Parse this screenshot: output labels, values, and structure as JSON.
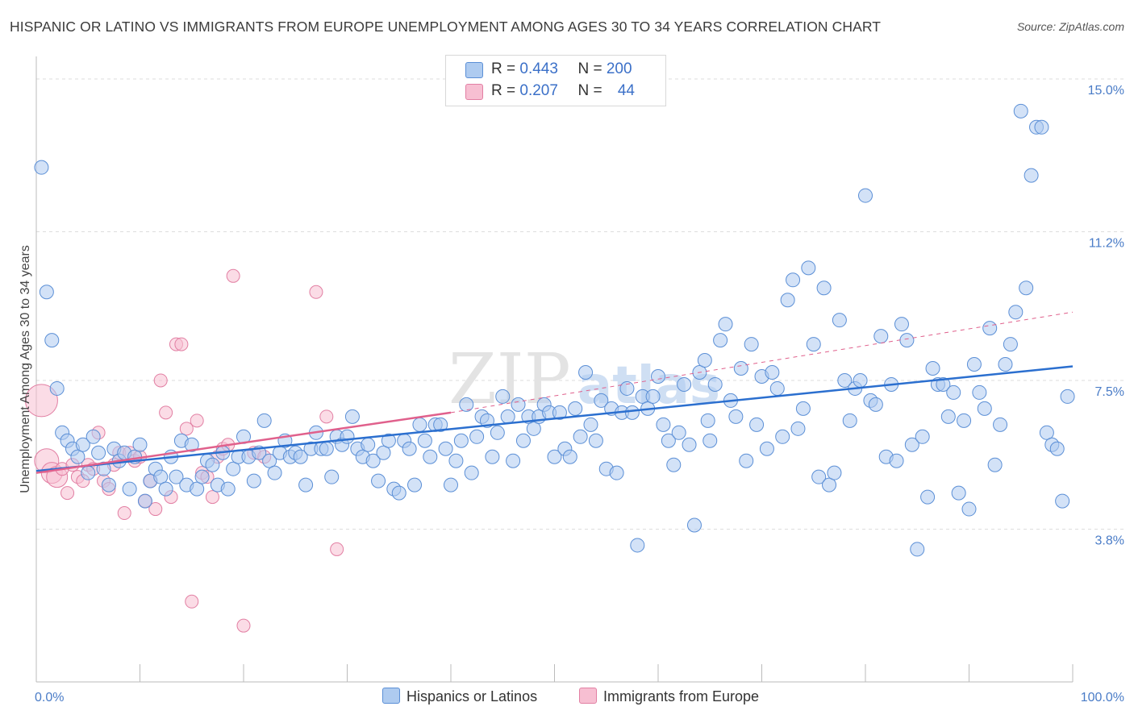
{
  "header": {
    "title": "HISPANIC OR LATINO VS IMMIGRANTS FROM EUROPE UNEMPLOYMENT AMONG AGES 30 TO 34 YEARS CORRELATION CHART",
    "source": "Source: ZipAtlas.com"
  },
  "watermark": {
    "left": "ZIP",
    "right": "atlas"
  },
  "legend": {
    "rows": [
      {
        "r_label": "R = ",
        "r_value": "0.443",
        "n_label": "N = ",
        "n_value": "200"
      },
      {
        "r_label": "R = ",
        "r_value": "0.207",
        "n_label": "N = ",
        "n_value": "44"
      }
    ]
  },
  "colors": {
    "blue_fill": "#aecbf0",
    "blue_stroke": "#5b8fd6",
    "blue_line": "#2b6fcf",
    "pink_fill": "#f7bfd2",
    "pink_stroke": "#e27fa3",
    "pink_line": "#e0608c",
    "grid": "#dddddd",
    "axis_label": "#4a7cc7"
  },
  "chart_data": {
    "type": "scatter",
    "xlabel": "",
    "ylabel": "Unemployment Among Ages 30 to 34 years",
    "xlim": [
      0,
      100
    ],
    "ylim": [
      0,
      15.4
    ],
    "x_tick_labels": [
      "0.0%",
      "100.0%"
    ],
    "y_ticks": [
      3.8,
      7.5,
      11.2,
      15.0
    ],
    "y_tick_labels": [
      "3.8%",
      "7.5%",
      "11.2%",
      "15.0%"
    ],
    "grid": true,
    "legend_position": "bottom",
    "series": [
      {
        "name": "Hispanics or Latinos",
        "r": 0.443,
        "n": 200,
        "trend": {
          "x": [
            0,
            100
          ],
          "y": [
            5.25,
            7.85
          ]
        },
        "points": [
          [
            0.5,
            12.8
          ],
          [
            1,
            9.7
          ],
          [
            1.5,
            8.5
          ],
          [
            2,
            7.3
          ],
          [
            2.5,
            6.2
          ],
          [
            3,
            6.0
          ],
          [
            3.5,
            5.8
          ],
          [
            4,
            5.6
          ],
          [
            4.5,
            5.9
          ],
          [
            5,
            5.2
          ],
          [
            5.5,
            6.1
          ],
          [
            6,
            5.7
          ],
          [
            6.5,
            5.3
          ],
          [
            7,
            4.9
          ],
          [
            7.5,
            5.8
          ],
          [
            8,
            5.5
          ],
          [
            8.5,
            5.7
          ],
          [
            9,
            4.8
          ],
          [
            9.5,
            5.6
          ],
          [
            10,
            5.9
          ],
          [
            10.5,
            4.5
          ],
          [
            11,
            5.0
          ],
          [
            11.5,
            5.3
          ],
          [
            12,
            5.1
          ],
          [
            12.5,
            4.8
          ],
          [
            13,
            5.6
          ],
          [
            13.5,
            5.1
          ],
          [
            14,
            6.0
          ],
          [
            14.5,
            4.9
          ],
          [
            15,
            5.9
          ],
          [
            15.5,
            4.8
          ],
          [
            16,
            5.1
          ],
          [
            16.5,
            5.5
          ],
          [
            17,
            5.4
          ],
          [
            17.5,
            4.9
          ],
          [
            18,
            5.7
          ],
          [
            18.5,
            4.8
          ],
          [
            19,
            5.3
          ],
          [
            19.5,
            5.6
          ],
          [
            20,
            6.1
          ],
          [
            20.5,
            5.6
          ],
          [
            21,
            5.0
          ],
          [
            21.5,
            5.7
          ],
          [
            22,
            6.5
          ],
          [
            22.5,
            5.5
          ],
          [
            23,
            5.2
          ],
          [
            23.5,
            5.7
          ],
          [
            24,
            6.0
          ],
          [
            24.5,
            5.6
          ],
          [
            25,
            5.7
          ],
          [
            25.5,
            5.6
          ],
          [
            26,
            4.9
          ],
          [
            26.5,
            5.8
          ],
          [
            27,
            6.2
          ],
          [
            27.5,
            5.8
          ],
          [
            28,
            5.8
          ],
          [
            28.5,
            5.1
          ],
          [
            29,
            6.1
          ],
          [
            29.5,
            5.9
          ],
          [
            30,
            6.1
          ],
          [
            30.5,
            6.6
          ],
          [
            31,
            5.8
          ],
          [
            31.5,
            5.6
          ],
          [
            32,
            5.9
          ],
          [
            32.5,
            5.5
          ],
          [
            33,
            5.0
          ],
          [
            33.5,
            5.7
          ],
          [
            34,
            6.0
          ],
          [
            34.5,
            4.8
          ],
          [
            35,
            4.7
          ],
          [
            35.5,
            6.0
          ],
          [
            36,
            5.8
          ],
          [
            36.5,
            4.9
          ],
          [
            37,
            6.4
          ],
          [
            37.5,
            6.0
          ],
          [
            38,
            5.6
          ],
          [
            38.5,
            6.4
          ],
          [
            39,
            6.4
          ],
          [
            39.5,
            5.8
          ],
          [
            40,
            4.9
          ],
          [
            40.5,
            5.5
          ],
          [
            41,
            6.0
          ],
          [
            41.5,
            6.9
          ],
          [
            42,
            5.2
          ],
          [
            42.5,
            6.1
          ],
          [
            43,
            6.6
          ],
          [
            43.5,
            6.5
          ],
          [
            44,
            5.6
          ],
          [
            44.5,
            6.2
          ],
          [
            45,
            7.1
          ],
          [
            45.5,
            6.6
          ],
          [
            46,
            5.5
          ],
          [
            46.5,
            6.9
          ],
          [
            47,
            6.0
          ],
          [
            47.5,
            6.6
          ],
          [
            48,
            6.3
          ],
          [
            48.5,
            6.6
          ],
          [
            49,
            6.9
          ],
          [
            49.5,
            6.7
          ],
          [
            50,
            5.6
          ],
          [
            50.5,
            6.7
          ],
          [
            51,
            5.8
          ],
          [
            51.5,
            5.6
          ],
          [
            52,
            6.8
          ],
          [
            52.5,
            6.1
          ],
          [
            53,
            7.7
          ],
          [
            53.5,
            6.4
          ],
          [
            54,
            6.0
          ],
          [
            54.5,
            7.0
          ],
          [
            55,
            5.3
          ],
          [
            55.5,
            6.8
          ],
          [
            56,
            5.2
          ],
          [
            56.5,
            6.7
          ],
          [
            57,
            7.3
          ],
          [
            57.5,
            6.7
          ],
          [
            58,
            3.4
          ],
          [
            58.5,
            7.1
          ],
          [
            59,
            6.8
          ],
          [
            59.5,
            7.1
          ],
          [
            60,
            7.6
          ],
          [
            60.5,
            6.4
          ],
          [
            61,
            6.0
          ],
          [
            61.5,
            5.4
          ],
          [
            62,
            6.2
          ],
          [
            62.5,
            7.4
          ],
          [
            63,
            5.9
          ],
          [
            63.5,
            3.9
          ],
          [
            64,
            7.7
          ],
          [
            64.5,
            8.0
          ],
          [
            65,
            6.0
          ],
          [
            65.5,
            7.4
          ],
          [
            66,
            8.5
          ],
          [
            66.5,
            8.9
          ],
          [
            67,
            7.0
          ],
          [
            67.5,
            6.6
          ],
          [
            68,
            7.8
          ],
          [
            68.5,
            5.5
          ],
          [
            69,
            8.4
          ],
          [
            69.5,
            6.4
          ],
          [
            70,
            7.6
          ],
          [
            70.5,
            5.8
          ],
          [
            71,
            7.7
          ],
          [
            71.5,
            7.3
          ],
          [
            72,
            6.1
          ],
          [
            72.5,
            9.5
          ],
          [
            73,
            10.0
          ],
          [
            73.5,
            6.3
          ],
          [
            74,
            6.8
          ],
          [
            74.5,
            10.3
          ],
          [
            75,
            8.4
          ],
          [
            75.5,
            5.1
          ],
          [
            76,
            9.8
          ],
          [
            76.5,
            4.9
          ],
          [
            77,
            5.2
          ],
          [
            77.5,
            9.0
          ],
          [
            78,
            7.5
          ],
          [
            78.5,
            6.5
          ],
          [
            79,
            7.3
          ],
          [
            79.5,
            7.5
          ],
          [
            80,
            12.1
          ],
          [
            80.5,
            7.0
          ],
          [
            81,
            6.9
          ],
          [
            81.5,
            8.6
          ],
          [
            82,
            5.6
          ],
          [
            82.5,
            7.4
          ],
          [
            83,
            5.5
          ],
          [
            83.5,
            8.9
          ],
          [
            84,
            8.5
          ],
          [
            84.5,
            5.9
          ],
          [
            85,
            3.3
          ],
          [
            85.5,
            6.1
          ],
          [
            86,
            4.6
          ],
          [
            86.5,
            7.8
          ],
          [
            87,
            7.4
          ],
          [
            87.5,
            7.4
          ],
          [
            88,
            6.6
          ],
          [
            88.5,
            7.2
          ],
          [
            89,
            4.7
          ],
          [
            89.5,
            6.5
          ],
          [
            90,
            4.3
          ],
          [
            90.5,
            7.9
          ],
          [
            91,
            7.2
          ],
          [
            91.5,
            6.8
          ],
          [
            92,
            8.8
          ],
          [
            92.5,
            5.4
          ],
          [
            93,
            6.4
          ],
          [
            93.5,
            7.9
          ],
          [
            94,
            8.4
          ],
          [
            94.5,
            9.2
          ],
          [
            95,
            14.2
          ],
          [
            95.5,
            9.8
          ],
          [
            96,
            12.6
          ],
          [
            96.5,
            13.8
          ],
          [
            97,
            13.8
          ],
          [
            97.5,
            6.2
          ],
          [
            98,
            5.9
          ],
          [
            98.5,
            5.8
          ],
          [
            99,
            4.5
          ],
          [
            99.5,
            7.1
          ],
          [
            64.8,
            6.5
          ]
        ]
      },
      {
        "name": "Immigrants from Europe",
        "r": 0.207,
        "n": 44,
        "trend": {
          "x": [
            0,
            40
          ],
          "y": [
            5.2,
            6.7
          ],
          "dashed_x": [
            40,
            100
          ],
          "dashed_y": [
            6.7,
            9.2
          ]
        },
        "points": [
          [
            0.5,
            7.0
          ],
          [
            1,
            5.5
          ],
          [
            1.5,
            5.2
          ],
          [
            2,
            5.1
          ],
          [
            2.5,
            5.3
          ],
          [
            3,
            4.7
          ],
          [
            3.5,
            5.4
          ],
          [
            4,
            5.1
          ],
          [
            4.5,
            5.0
          ],
          [
            5,
            5.4
          ],
          [
            5.5,
            5.3
          ],
          [
            6,
            6.2
          ],
          [
            6.5,
            5.0
          ],
          [
            7,
            4.8
          ],
          [
            7.5,
            5.4
          ],
          [
            8,
            5.7
          ],
          [
            8.5,
            4.2
          ],
          [
            9,
            5.7
          ],
          [
            9.5,
            5.5
          ],
          [
            10,
            5.6
          ],
          [
            10.5,
            4.5
          ],
          [
            11,
            5.0
          ],
          [
            11.5,
            4.3
          ],
          [
            12,
            7.5
          ],
          [
            12.5,
            6.7
          ],
          [
            13,
            4.6
          ],
          [
            13.5,
            8.4
          ],
          [
            14,
            8.4
          ],
          [
            14.5,
            6.3
          ],
          [
            15,
            2.0
          ],
          [
            15.5,
            6.5
          ],
          [
            16,
            5.2
          ],
          [
            16.5,
            5.1
          ],
          [
            17,
            4.6
          ],
          [
            17.5,
            5.6
          ],
          [
            18,
            5.8
          ],
          [
            18.5,
            5.9
          ],
          [
            19,
            10.1
          ],
          [
            20,
            1.4
          ],
          [
            21,
            5.7
          ],
          [
            22,
            5.6
          ],
          [
            27,
            9.7
          ],
          [
            28,
            6.6
          ],
          [
            29,
            3.3
          ]
        ]
      }
    ]
  },
  "bottom_legend": {
    "items": [
      {
        "label": "Hispanics or Latinos"
      },
      {
        "label": "Immigrants from Europe"
      }
    ]
  }
}
